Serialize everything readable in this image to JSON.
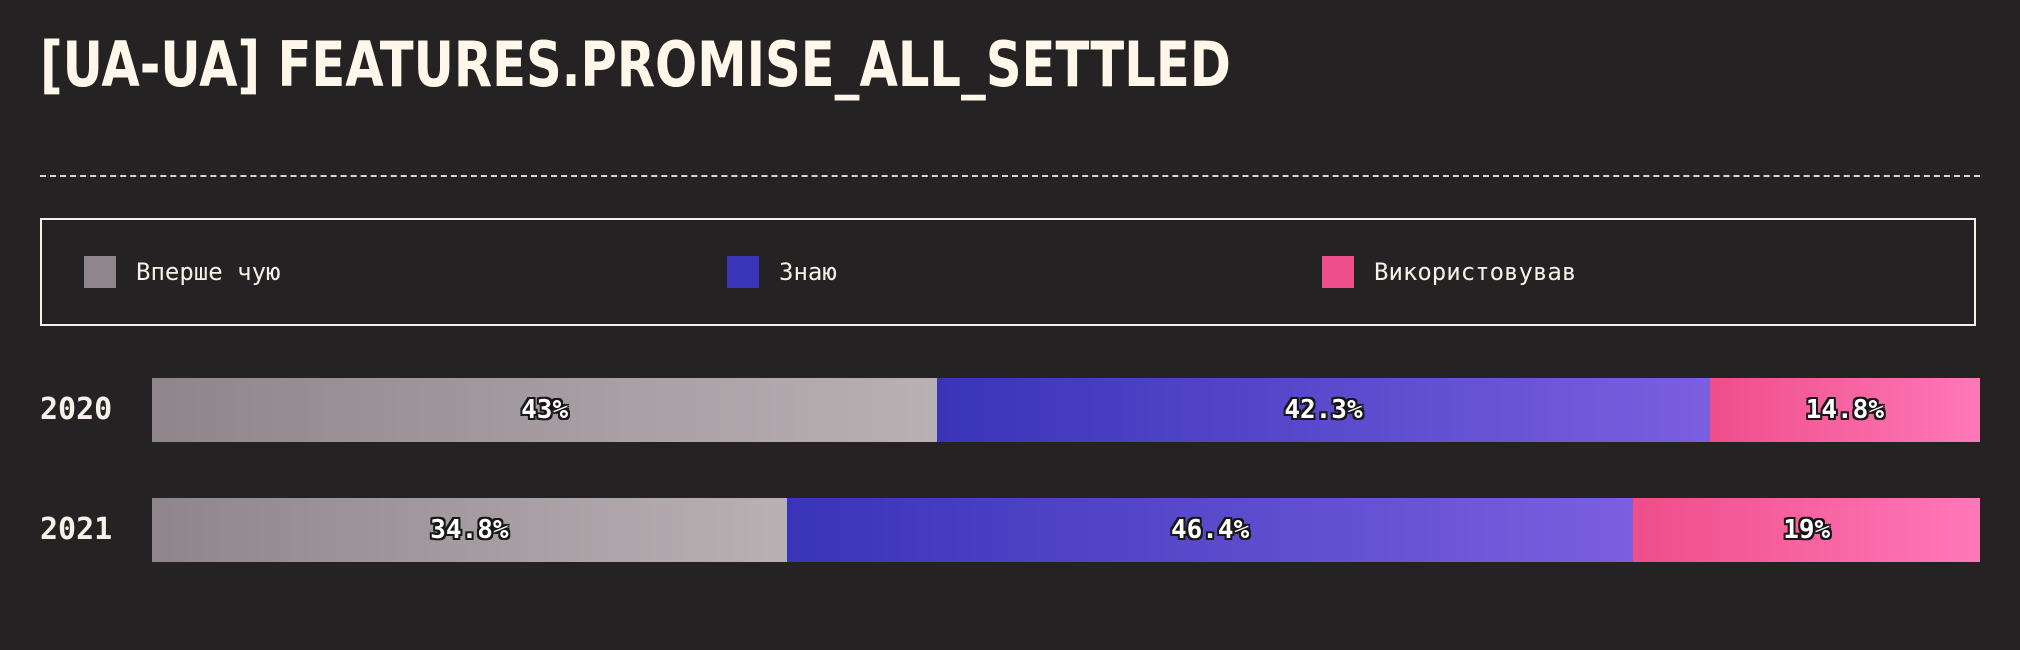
{
  "title": "[UA-UA] FEATURES.PROMISE_ALL_SETTLED",
  "chart_data": {
    "type": "bar",
    "orientation": "horizontal",
    "stacked": true,
    "normalized": true,
    "title": "[UA-UA] FEATURES.PROMISE_ALL_SETTLED",
    "categories": [
      "2020",
      "2021"
    ],
    "series": [
      {
        "name": "Вперше чую",
        "values": [
          43,
          34.8
        ],
        "labels": [
          "43%",
          "34.8%"
        ],
        "color_from": "#8f868b",
        "color_to": "#b8b1b4"
      },
      {
        "name": "Знаю",
        "values": [
          42.3,
          46.4
        ],
        "labels": [
          "42.3%",
          "46.4%"
        ],
        "color_from": "#3a34b8",
        "color_to": "#7a5fe0"
      },
      {
        "name": "Використовував",
        "values": [
          14.8,
          19
        ],
        "labels": [
          "14.8%",
          "19%"
        ],
        "color_from": "#ee4e8a",
        "color_to": "#ff78b8"
      }
    ],
    "legend_position": "top",
    "legend_colors": [
      "#8f868b",
      "#3a34b8",
      "#ee4e8a"
    ],
    "grid": false
  }
}
